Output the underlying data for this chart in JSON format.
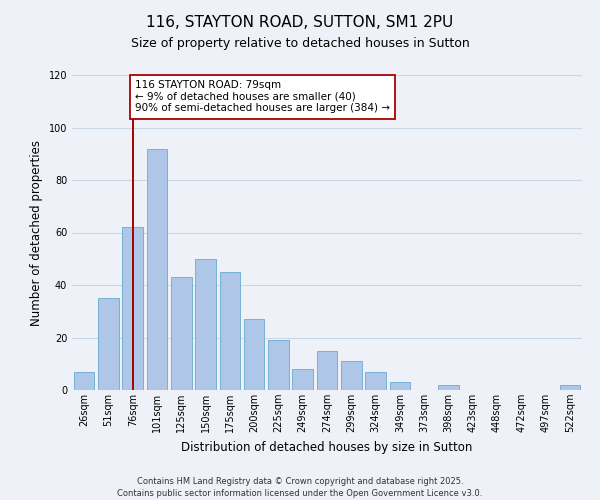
{
  "title": "116, STAYTON ROAD, SUTTON, SM1 2PU",
  "subtitle": "Size of property relative to detached houses in Sutton",
  "xlabel": "Distribution of detached houses by size in Sutton",
  "ylabel": "Number of detached properties",
  "bar_labels": [
    "26sqm",
    "51sqm",
    "76sqm",
    "101sqm",
    "125sqm",
    "150sqm",
    "175sqm",
    "200sqm",
    "225sqm",
    "249sqm",
    "274sqm",
    "299sqm",
    "324sqm",
    "349sqm",
    "373sqm",
    "398sqm",
    "423sqm",
    "448sqm",
    "472sqm",
    "497sqm",
    "522sqm"
  ],
  "bar_values": [
    7,
    35,
    62,
    92,
    43,
    50,
    45,
    27,
    19,
    8,
    15,
    11,
    7,
    3,
    0,
    2,
    0,
    0,
    0,
    0,
    2
  ],
  "bar_color": "#aec6e8",
  "bar_edge_color": "#6aabd2",
  "vline_x": 2.0,
  "vline_color": "#aa0000",
  "annotation_text": "116 STAYTON ROAD: 79sqm\n← 9% of detached houses are smaller (40)\n90% of semi-detached houses are larger (384) →",
  "annotation_box_color": "#ffffff",
  "annotation_box_edge": "#aa0000",
  "ylim": [
    0,
    120
  ],
  "yticks": [
    0,
    20,
    40,
    60,
    80,
    100,
    120
  ],
  "grid_color": "#c8d8e8",
  "background_color": "#eef2f8",
  "footer_line1": "Contains HM Land Registry data © Crown copyright and database right 2025.",
  "footer_line2": "Contains public sector information licensed under the Open Government Licence v3.0.",
  "title_fontsize": 11,
  "subtitle_fontsize": 9,
  "axis_label_fontsize": 8.5,
  "tick_fontsize": 7,
  "annotation_fontsize": 7.5,
  "footer_fontsize": 6
}
